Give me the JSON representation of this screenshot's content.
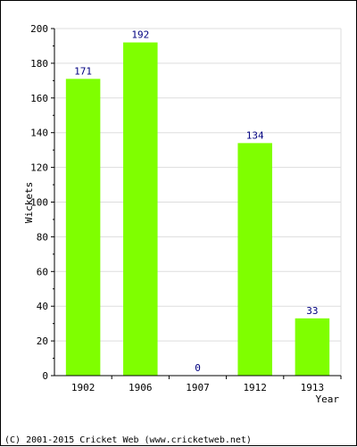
{
  "chart_data": {
    "type": "bar",
    "categories": [
      "1902",
      "1906",
      "1907",
      "1912",
      "1913"
    ],
    "values": [
      171,
      192,
      0,
      134,
      33
    ],
    "data_labels": [
      "171",
      "192",
      "0",
      "134",
      "33"
    ],
    "xlabel": "Year",
    "ylabel": "Wickets",
    "ylim": [
      0,
      200
    ],
    "yticks": [
      0,
      20,
      40,
      60,
      80,
      100,
      120,
      140,
      160,
      180,
      200
    ],
    "grid": true
  },
  "footer": "(C) 2001-2015 Cricket Web (www.cricketweb.net)",
  "colors": {
    "bar": "#7fff00",
    "value_label": "#000080",
    "grid": "#dddddd",
    "axis": "#000000"
  }
}
